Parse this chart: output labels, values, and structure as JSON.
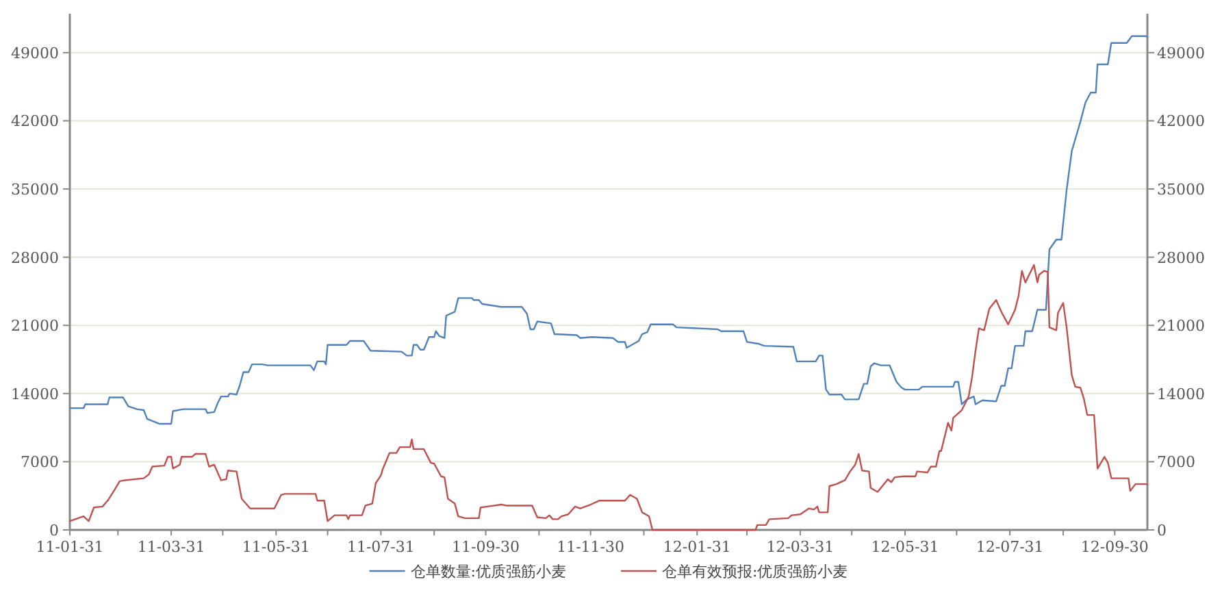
{
  "chart_data": {
    "type": "line",
    "xlim": [
      "2011-01-31",
      "2012-10-19"
    ],
    "xticks": [
      {
        "value": "2011-01-31",
        "label": "11-01-31"
      },
      {
        "value": "2011-02-28",
        "label": null
      },
      {
        "value": "2011-03-31",
        "label": "11-03-31"
      },
      {
        "value": "2011-04-30",
        "label": null
      },
      {
        "value": "2011-05-31",
        "label": "11-05-31"
      },
      {
        "value": "2011-06-30",
        "label": null
      },
      {
        "value": "2011-07-31",
        "label": "11-07-31"
      },
      {
        "value": "2011-08-31",
        "label": null
      },
      {
        "value": "2011-09-30",
        "label": "11-09-30"
      },
      {
        "value": "2011-10-31",
        "label": null
      },
      {
        "value": "2011-11-30",
        "label": "11-11-30"
      },
      {
        "value": "2011-12-31",
        "label": null
      },
      {
        "value": "2012-01-31",
        "label": "12-01-31"
      },
      {
        "value": "2012-02-29",
        "label": null
      },
      {
        "value": "2012-03-31",
        "label": "12-03-31"
      },
      {
        "value": "2012-04-30",
        "label": null
      },
      {
        "value": "2012-05-31",
        "label": "12-05-31"
      },
      {
        "value": "2012-06-30",
        "label": null
      },
      {
        "value": "2012-07-31",
        "label": "12-07-31"
      },
      {
        "value": "2012-08-31",
        "label": null
      },
      {
        "value": "2012-09-30",
        "label": "12-09-30"
      }
    ],
    "ylim": [
      0,
      53000
    ],
    "yticks": [
      0,
      7000,
      14000,
      21000,
      28000,
      35000,
      42000,
      49000
    ],
    "y2lim": [
      0,
      53000
    ],
    "y2ticks": [
      0,
      7000,
      14000,
      21000,
      28000,
      35000,
      42000,
      49000
    ],
    "grid": "y",
    "legend": "bottom",
    "marker": "none",
    "line_style": "solid",
    "series": [
      {
        "name": "仓单数量:优质强筋小麦",
        "color": "#4f81bd",
        "x": [
          "2011-01-31",
          "2011-02-08",
          "2011-02-09",
          "2011-02-22",
          "2011-02-23",
          "2011-03-03",
          "2011-03-06",
          "2011-03-11",
          "2011-03-15",
          "2011-03-17",
          "2011-03-24",
          "2011-03-31",
          "2011-04-01",
          "2011-04-07",
          "2011-04-20",
          "2011-04-21",
          "2011-04-25",
          "2011-04-27",
          "2011-04-29",
          "2011-05-03",
          "2011-05-04",
          "2011-05-08",
          "2011-05-10",
          "2011-05-12",
          "2011-05-15",
          "2011-05-17",
          "2011-05-23",
          "2011-05-26",
          "2011-06-20",
          "2011-06-22",
          "2011-06-24",
          "2011-06-28",
          "2011-06-29",
          "2011-06-30",
          "2011-07-11",
          "2011-07-13",
          "2011-07-21",
          "2011-07-25",
          "2011-08-12",
          "2011-08-15",
          "2011-08-18",
          "2011-08-19",
          "2011-08-21",
          "2011-08-23",
          "2011-08-25",
          "2011-08-28",
          "2011-08-31",
          "2011-09-01",
          "2011-09-03",
          "2011-09-06",
          "2011-09-07",
          "2011-09-12",
          "2011-09-14",
          "2011-09-22",
          "2011-09-23",
          "2011-09-26",
          "2011-09-28",
          "2011-10-09",
          "2011-10-21",
          "2011-10-24",
          "2011-10-26",
          "2011-10-28",
          "2011-10-30",
          "2011-11-07",
          "2011-11-09",
          "2011-11-22",
          "2011-11-24",
          "2011-12-01",
          "2011-12-13",
          "2011-12-16",
          "2011-12-20",
          "2011-12-21",
          "2011-12-25",
          "2011-12-28",
          "2011-12-30",
          "2012-01-02",
          "2012-01-04",
          "2012-01-17",
          "2012-01-19",
          "2012-02-12",
          "2012-02-14",
          "2012-02-27",
          "2012-02-29",
          "2012-03-07",
          "2012-03-10",
          "2012-03-27",
          "2012-03-29",
          "2012-04-09",
          "2012-04-11",
          "2012-04-13",
          "2012-04-15",
          "2012-04-17",
          "2012-04-24",
          "2012-04-26",
          "2012-05-04",
          "2012-05-07",
          "2012-05-09",
          "2012-05-11",
          "2012-05-13",
          "2012-05-17",
          "2012-05-22",
          "2012-05-26",
          "2012-05-29",
          "2012-05-31",
          "2012-06-08",
          "2012-06-10",
          "2012-06-28",
          "2012-06-29",
          "2012-07-01",
          "2012-07-03",
          "2012-07-06",
          "2012-07-10",
          "2012-07-11",
          "2012-07-15",
          "2012-07-23",
          "2012-07-26",
          "2012-07-28",
          "2012-07-30",
          "2012-08-01",
          "2012-08-03",
          "2012-08-08",
          "2012-08-09",
          "2012-08-13",
          "2012-08-16",
          "2012-08-21",
          "2012-08-23",
          "2012-08-27",
          "2012-08-30",
          "2012-09-02",
          "2012-09-05",
          "2012-09-07",
          "2012-09-10",
          "2012-09-13",
          "2012-09-16",
          "2012-09-19",
          "2012-09-20",
          "2012-09-26",
          "2012-09-28",
          "2012-10-07",
          "2012-10-10",
          "2012-10-18",
          "2012-10-19"
        ],
        "values": [
          12500,
          12500,
          12900,
          12900,
          13600,
          13600,
          12700,
          12400,
          12300,
          11400,
          10900,
          10900,
          12200,
          12400,
          12400,
          12000,
          12100,
          13000,
          13700,
          13700,
          14000,
          13900,
          14900,
          16200,
          16200,
          17000,
          17000,
          16900,
          16900,
          16400,
          17300,
          17300,
          17000,
          19000,
          19000,
          19400,
          19400,
          18400,
          18300,
          17900,
          17900,
          19000,
          19000,
          18500,
          18500,
          19800,
          19800,
          20400,
          19900,
          19700,
          22000,
          22400,
          23800,
          23800,
          23600,
          23600,
          23200,
          22900,
          22900,
          22200,
          20600,
          20600,
          21400,
          21200,
          20100,
          20000,
          19700,
          19800,
          19700,
          19300,
          19300,
          18700,
          19100,
          19400,
          20100,
          20300,
          21100,
          21100,
          20800,
          20600,
          20400,
          20400,
          19300,
          19100,
          18900,
          18800,
          17300,
          17300,
          17900,
          17900,
          14400,
          13900,
          13900,
          13400,
          13400,
          15000,
          15000,
          16800,
          17100,
          16900,
          16900,
          15200,
          14600,
          14400,
          14400,
          14700,
          14700,
          15200,
          15200,
          12900,
          13400,
          13700,
          12900,
          13300,
          13200,
          14800,
          14800,
          16600,
          16600,
          18900,
          18900,
          20400,
          20400,
          22600,
          22600,
          28800,
          29800,
          29800,
          34900,
          38900,
          40100,
          41900,
          43900,
          44900,
          44900,
          47800,
          47800,
          50000,
          50000,
          50700,
          50700,
          50600
        ]
      },
      {
        "name": "仓单有效预报:优质强筋小麦",
        "color": "#c0504d",
        "x": [
          "2011-01-31",
          "2011-02-08",
          "2011-02-11",
          "2011-02-14",
          "2011-02-19",
          "2011-02-22",
          "2011-02-26",
          "2011-03-01",
          "2011-03-04",
          "2011-03-15",
          "2011-03-18",
          "2011-03-20",
          "2011-03-27",
          "2011-03-29",
          "2011-03-31",
          "2011-04-01",
          "2011-04-05",
          "2011-04-06",
          "2011-04-12",
          "2011-04-14",
          "2011-04-20",
          "2011-04-22",
          "2011-04-25",
          "2011-04-29",
          "2011-05-02",
          "2011-05-03",
          "2011-05-08",
          "2011-05-11",
          "2011-05-16",
          "2011-05-30",
          "2011-06-03",
          "2011-06-05",
          "2011-06-23",
          "2011-06-24",
          "2011-06-28",
          "2011-06-30",
          "2011-07-04",
          "2011-07-11",
          "2011-07-12",
          "2011-07-13",
          "2011-07-20",
          "2011-07-22",
          "2011-07-26",
          "2011-07-28",
          "2011-07-31",
          "2011-08-01",
          "2011-08-05",
          "2011-08-09",
          "2011-08-11",
          "2011-08-17",
          "2011-08-18",
          "2011-08-19",
          "2011-08-25",
          "2011-08-29",
          "2011-08-31",
          "2011-09-04",
          "2011-09-06",
          "2011-09-08",
          "2011-09-12",
          "2011-09-14",
          "2011-09-18",
          "2011-09-26",
          "2011-09-27",
          "2011-10-01",
          "2011-10-09",
          "2011-10-12",
          "2011-10-27",
          "2011-10-30",
          "2011-11-04",
          "2011-11-06",
          "2011-11-08",
          "2011-11-11",
          "2011-11-13",
          "2011-11-17",
          "2011-11-21",
          "2011-11-24",
          "2011-11-30",
          "2011-12-05",
          "2011-12-20",
          "2011-12-23",
          "2011-12-27",
          "2011-12-30",
          "2012-01-03",
          "2012-01-05",
          "2012-03-05",
          "2012-03-06",
          "2012-03-11",
          "2012-03-13",
          "2012-03-24",
          "2012-03-26",
          "2012-03-31",
          "2012-04-05",
          "2012-04-08",
          "2012-04-10",
          "2012-04-11",
          "2012-04-16",
          "2012-04-17",
          "2012-04-21",
          "2012-04-26",
          "2012-04-29",
          "2012-05-02",
          "2012-05-04",
          "2012-05-06",
          "2012-05-10",
          "2012-05-11",
          "2012-05-15",
          "2012-05-21",
          "2012-05-23",
          "2012-05-25",
          "2012-05-30",
          "2012-06-06",
          "2012-06-07",
          "2012-06-13",
          "2012-06-15",
          "2012-06-18",
          "2012-06-20",
          "2012-06-21",
          "2012-06-25",
          "2012-06-27",
          "2012-06-28",
          "2012-07-03",
          "2012-07-07",
          "2012-07-09",
          "2012-07-11",
          "2012-07-13",
          "2012-07-16",
          "2012-07-19",
          "2012-07-23",
          "2012-07-26",
          "2012-07-30",
          "2012-08-03",
          "2012-08-05",
          "2012-08-07",
          "2012-08-09",
          "2012-08-14",
          "2012-08-16",
          "2012-08-17",
          "2012-08-20",
          "2012-08-22",
          "2012-08-23",
          "2012-08-27",
          "2012-08-28",
          "2012-08-31",
          "2012-09-02",
          "2012-09-05",
          "2012-09-07",
          "2012-09-10",
          "2012-09-12",
          "2012-09-14",
          "2012-09-18",
          "2012-09-20",
          "2012-09-24",
          "2012-09-26",
          "2012-09-28",
          "2012-10-08",
          "2012-10-09",
          "2012-10-12",
          "2012-10-19"
        ],
        "values": [
          900,
          1400,
          900,
          2300,
          2400,
          3000,
          4100,
          5000,
          5100,
          5300,
          5700,
          6500,
          6600,
          7500,
          7500,
          6300,
          6700,
          7500,
          7500,
          7800,
          7800,
          6500,
          6700,
          5100,
          5200,
          6100,
          6000,
          3200,
          2200,
          2200,
          3600,
          3700,
          3700,
          3000,
          3000,
          900,
          1500,
          1500,
          1100,
          1500,
          1500,
          2500,
          2700,
          4800,
          5600,
          6200,
          7900,
          7900,
          8500,
          8500,
          9300,
          8300,
          8300,
          6900,
          6800,
          5500,
          5400,
          3200,
          2700,
          1400,
          1200,
          1200,
          2300,
          2400,
          2600,
          2500,
          2500,
          1300,
          1200,
          1500,
          1100,
          1100,
          1400,
          1600,
          2400,
          2200,
          2600,
          3000,
          3000,
          3600,
          3200,
          1800,
          1400,
          0,
          0,
          500,
          500,
          1100,
          1200,
          1500,
          1600,
          2200,
          2100,
          2400,
          1800,
          1800,
          4500,
          4700,
          5100,
          6000,
          6700,
          7800,
          6100,
          6000,
          4300,
          3900,
          5200,
          4900,
          5400,
          5500,
          5500,
          6000,
          5900,
          6500,
          6500,
          8100,
          8100,
          11000,
          10200,
          11500,
          12300,
          13700,
          15700,
          18400,
          20700,
          20500,
          22700,
          23600,
          22400,
          21100,
          22600,
          24000,
          26600,
          25400,
          27200,
          25400,
          26200,
          26600,
          26500,
          20800,
          20500,
          22300,
          23300,
          20800,
          15900,
          14700,
          14600,
          13500,
          11800,
          11800,
          6300,
          7500,
          6900,
          5300,
          5300,
          4000,
          4700,
          4700
        ]
      }
    ]
  }
}
